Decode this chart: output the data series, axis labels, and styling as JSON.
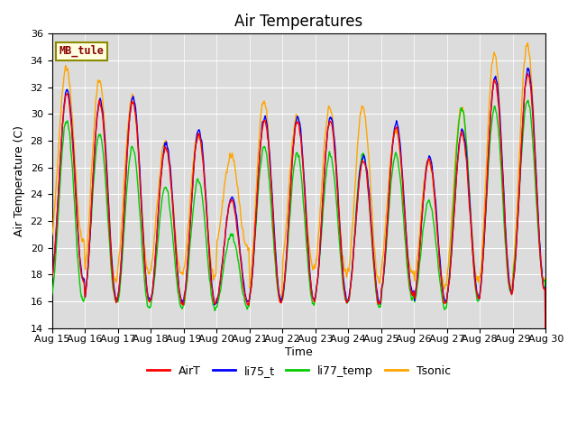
{
  "title": "Air Temperatures",
  "xlabel": "Time",
  "ylabel": "Air Temperature (C)",
  "ylim": [
    14,
    36
  ],
  "x_tick_labels": [
    "Aug 15",
    "Aug 16",
    "Aug 17",
    "Aug 18",
    "Aug 19",
    "Aug 20",
    "Aug 21",
    "Aug 22",
    "Aug 23",
    "Aug 24",
    "Aug 25",
    "Aug 26",
    "Aug 27",
    "Aug 28",
    "Aug 29",
    "Aug 30"
  ],
  "annotation_text": "MB_tule",
  "annotation_color": "#8B0000",
  "annotation_bg": "#FFFFE0",
  "annotation_border": "#8B8B00",
  "colors": {
    "AirT": "#FF0000",
    "li75_t": "#0000FF",
    "li77_temp": "#00CC00",
    "Tsonic": "#FFA500"
  },
  "linewidth": 1.0,
  "bg_color": "#DCDCDC",
  "grid_color": "#FFFFFF",
  "title_fontsize": 12,
  "label_fontsize": 9,
  "tick_fontsize": 8,
  "legend_fontsize": 9
}
